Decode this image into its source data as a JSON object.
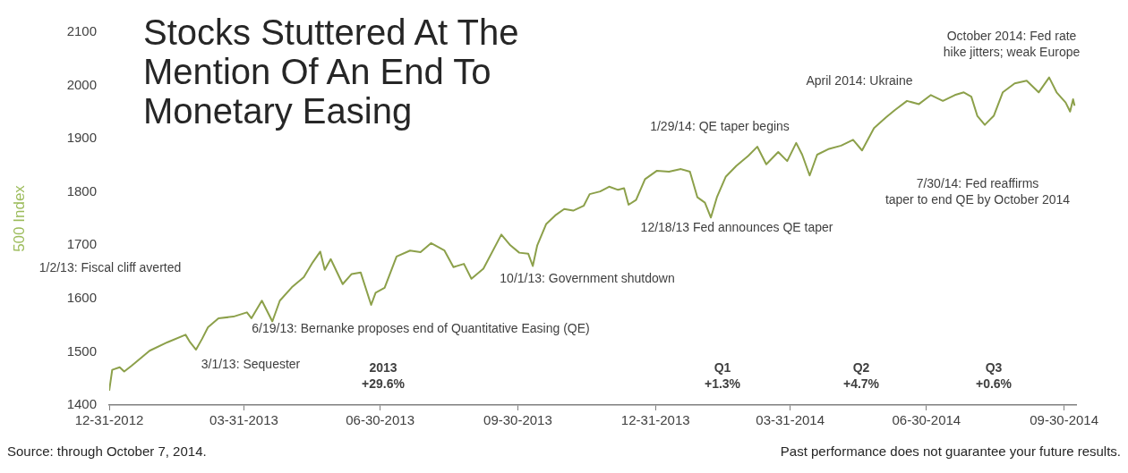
{
  "chart_data": {
    "type": "line",
    "title": "Stocks Stuttered At The Mention Of An End To Monetary Easing",
    "ylabel": "500 Index",
    "marker": "none",
    "line_style": "solid",
    "xlim": [
      "2012-12-31",
      "2014-10-08"
    ],
    "ylim": [
      1400,
      2100
    ],
    "yticks": [
      1400,
      1500,
      1600,
      1700,
      1800,
      1900,
      2000,
      2100
    ],
    "xticks": [
      {
        "value": "2012-12-31",
        "label": "12-31-2012"
      },
      {
        "value": "2013-03-31",
        "label": "03-31-2013"
      },
      {
        "value": "2013-06-30",
        "label": "06-30-2013"
      },
      {
        "value": "2013-09-30",
        "label": "09-30-2013"
      },
      {
        "value": "2013-12-31",
        "label": "12-31-2013"
      },
      {
        "value": "2014-03-31",
        "label": "03-31-2014"
      },
      {
        "value": "2014-06-30",
        "label": "06-30-2014"
      },
      {
        "value": "2014-09-30",
        "label": "09-30-2014"
      }
    ],
    "series": [
      {
        "color": "#8ca04a",
        "x": [
          "2012-12-31",
          "2013-01-02",
          "2013-01-07",
          "2013-01-10",
          "2013-01-15",
          "2013-01-27",
          "2013-02-08",
          "2013-02-20",
          "2013-02-23",
          "2013-02-27",
          "2013-03-03",
          "2013-03-07",
          "2013-03-14",
          "2013-03-24",
          "2013-04-02",
          "2013-04-05",
          "2013-04-12",
          "2013-04-19",
          "2013-04-24",
          "2013-05-02",
          "2013-05-10",
          "2013-05-16",
          "2013-05-21",
          "2013-05-24",
          "2013-05-28",
          "2013-06-05",
          "2013-06-11",
          "2013-06-17",
          "2013-06-24",
          "2013-06-27",
          "2013-07-03",
          "2013-07-11",
          "2013-07-20",
          "2013-07-27",
          "2013-08-03",
          "2013-08-12",
          "2013-08-18",
          "2013-08-25",
          "2013-08-30",
          "2013-09-07",
          "2013-09-19",
          "2013-09-25",
          "2013-10-01",
          "2013-10-07",
          "2013-10-10",
          "2013-10-13",
          "2013-10-19",
          "2013-10-25",
          "2013-10-31",
          "2013-11-06",
          "2013-11-13",
          "2013-11-17",
          "2013-11-24",
          "2013-11-30",
          "2013-12-06",
          "2013-12-10",
          "2013-12-13",
          "2013-12-18",
          "2013-12-24",
          "2014-01-01",
          "2014-01-09",
          "2014-01-17",
          "2014-01-23",
          "2014-01-28",
          "2014-02-02",
          "2014-02-06",
          "2014-02-10",
          "2014-02-16",
          "2014-02-23",
          "2014-03-03",
          "2014-03-09",
          "2014-03-15",
          "2014-03-23",
          "2014-03-29",
          "2014-04-04",
          "2014-04-08",
          "2014-04-13",
          "2014-04-18",
          "2014-04-26",
          "2014-05-04",
          "2014-05-12",
          "2014-05-18",
          "2014-05-26",
          "2014-06-03",
          "2014-06-09",
          "2014-06-17",
          "2014-06-25",
          "2014-07-03",
          "2014-07-11",
          "2014-07-19",
          "2014-07-25",
          "2014-07-30",
          "2014-08-03",
          "2014-08-08",
          "2014-08-14",
          "2014-08-20",
          "2014-08-28",
          "2014-09-05",
          "2014-09-13",
          "2014-09-20",
          "2014-09-25",
          "2014-10-01",
          "2014-10-04",
          "2014-10-06",
          "2014-10-07"
        ],
        "values": [
          1427,
          1466,
          1471,
          1463,
          1474,
          1502,
          1518,
          1532,
          1518,
          1504,
          1524,
          1546,
          1563,
          1566,
          1574,
          1563,
          1596,
          1557,
          1596,
          1621,
          1640,
          1668,
          1688,
          1654,
          1674,
          1627,
          1646,
          1649,
          1588,
          1611,
          1620,
          1679,
          1690,
          1687,
          1704,
          1690,
          1659,
          1665,
          1637,
          1656,
          1720,
          1700,
          1686,
          1684,
          1661,
          1700,
          1740,
          1756,
          1768,
          1765,
          1774,
          1796,
          1801,
          1810,
          1804,
          1807,
          1776,
          1785,
          1824,
          1840,
          1838,
          1843,
          1838,
          1790,
          1780,
          1752,
          1790,
          1829,
          1849,
          1868,
          1885,
          1852,
          1875,
          1858,
          1892,
          1870,
          1831,
          1870,
          1881,
          1887,
          1898,
          1878,
          1920,
          1940,
          1954,
          1971,
          1965,
          1982,
          1971,
          1982,
          1987,
          1979,
          1943,
          1926,
          1943,
          1987,
          2004,
          2009,
          1987,
          2015,
          1987,
          1968,
          1951,
          1974,
          1962
        ]
      }
    ],
    "annotations": [
      "1/2/13: Fiscal cliff averted",
      "3/1/13: Sequester",
      "6/19/13: Bernanke proposes end of Quantitative Easing (QE)",
      "10/1/13: Government shutdown",
      "12/18/13 Fed announces QE taper",
      "1/29/14: QE taper begins",
      "April 2014: Ukraine",
      "October 2014: Fed rate\nhike jitters; weak Europe",
      "7/30/14: Fed reaffirms\ntaper to end QE by October 2014",
      "2013\n+29.6%",
      "Q1\n+1.3%",
      "Q2\n+4.7%",
      "Q3\n+0.6%",
      "Source: through October 7, 2014.",
      "Past performance does not guarantee your future results."
    ]
  }
}
